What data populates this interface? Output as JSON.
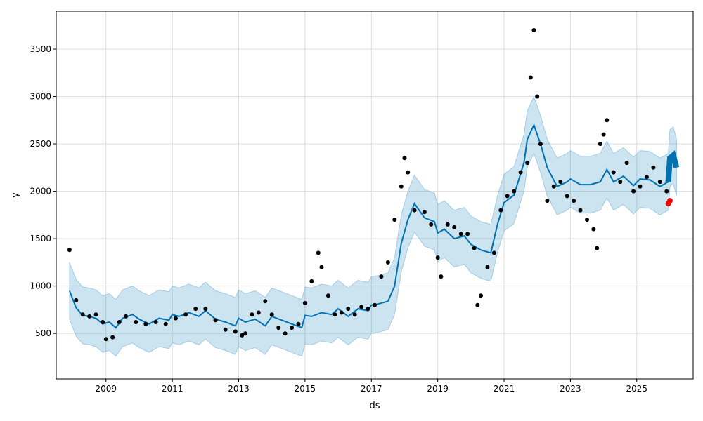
{
  "chart_data": {
    "type": "line",
    "title": "",
    "xlabel": "ds",
    "ylabel": "y",
    "grid": true,
    "xlim": [
      2007.5,
      2026.7
    ],
    "ylim": [
      20,
      3900
    ],
    "xticks": [
      2009,
      2011,
      2013,
      2015,
      2017,
      2019,
      2021,
      2023,
      2025
    ],
    "yticks": [
      500,
      1000,
      1500,
      2000,
      2500,
      3000,
      3500
    ],
    "colors": {
      "forecast": "#0072B2",
      "band": "#0072B2",
      "actual": "#000000",
      "highlight": "#ff0000"
    },
    "series": [
      {
        "role": "forecast_yhat",
        "x": [
          2007.9,
          2008.1,
          2008.3,
          2008.5,
          2008.7,
          2008.9,
          2009.1,
          2009.3,
          2009.5,
          2009.8,
          2010.0,
          2010.3,
          2010.6,
          2010.9,
          2011.0,
          2011.2,
          2011.5,
          2011.8,
          2012.0,
          2012.3,
          2012.6,
          2012.9,
          2013.0,
          2013.2,
          2013.5,
          2013.8,
          2014.0,
          2014.3,
          2014.6,
          2014.9,
          2015.0,
          2015.2,
          2015.5,
          2015.8,
          2016.0,
          2016.3,
          2016.6,
          2016.9,
          2017.0,
          2017.2,
          2017.5,
          2017.7,
          2017.9,
          2018.1,
          2018.3,
          2018.6,
          2018.9,
          2019.0,
          2019.2,
          2019.5,
          2019.8,
          2020.0,
          2020.3,
          2020.6,
          2020.8,
          2021.0,
          2021.3,
          2021.6,
          2021.7,
          2021.9,
          2022.1,
          2022.3,
          2022.6,
          2022.9,
          2023.0,
          2023.3,
          2023.6,
          2023.9,
          2024.1,
          2024.3,
          2024.6,
          2024.9,
          2025.1,
          2025.4,
          2025.7,
          2025.95
        ],
        "y": [
          950,
          770,
          690,
          680,
          660,
          600,
          620,
          560,
          660,
          700,
          650,
          600,
          660,
          640,
          700,
          680,
          720,
          680,
          740,
          650,
          620,
          580,
          660,
          620,
          650,
          580,
          680,
          640,
          600,
          560,
          690,
          680,
          720,
          700,
          760,
          680,
          760,
          740,
          800,
          810,
          840,
          1000,
          1450,
          1700,
          1870,
          1720,
          1680,
          1560,
          1600,
          1500,
          1530,
          1440,
          1380,
          1350,
          1650,
          1880,
          1960,
          2300,
          2550,
          2700,
          2500,
          2250,
          2050,
          2100,
          2130,
          2070,
          2070,
          2100,
          2230,
          2100,
          2160,
          2060,
          2130,
          2120,
          2050,
          2100
        ]
      },
      {
        "role": "forecast_future",
        "x": [
          2025.95,
          2026.0,
          2026.1,
          2026.2
        ],
        "y": [
          2100,
          2350,
          2380,
          2250
        ]
      },
      {
        "role": "actual",
        "x": [
          2007.9,
          2008.1,
          2008.3,
          2008.5,
          2008.7,
          2008.9,
          2009.0,
          2009.2,
          2009.4,
          2009.6,
          2009.9,
          2010.2,
          2010.5,
          2010.8,
          2011.1,
          2011.4,
          2011.7,
          2012.0,
          2012.3,
          2012.6,
          2012.9,
          2013.1,
          2013.2,
          2013.4,
          2013.6,
          2013.8,
          2014.0,
          2014.2,
          2014.4,
          2014.6,
          2014.8,
          2015.0,
          2015.2,
          2015.4,
          2015.5,
          2015.7,
          2015.9,
          2016.1,
          2016.3,
          2016.5,
          2016.7,
          2016.9,
          2017.1,
          2017.3,
          2017.5,
          2017.7,
          2017.9,
          2018.0,
          2018.1,
          2018.3,
          2018.6,
          2018.8,
          2019.0,
          2019.1,
          2019.3,
          2019.5,
          2019.7,
          2019.9,
          2020.1,
          2020.2,
          2020.3,
          2020.5,
          2020.7,
          2020.9,
          2021.1,
          2021.3,
          2021.5,
          2021.7,
          2021.8,
          2021.9,
          2022.0,
          2022.1,
          2022.3,
          2022.5,
          2022.7,
          2022.9,
          2023.1,
          2023.3,
          2023.5,
          2023.7,
          2023.8,
          2023.9,
          2024.0,
          2024.1,
          2024.3,
          2024.5,
          2024.7,
          2024.9,
          2025.1,
          2025.3,
          2025.5,
          2025.7,
          2025.9
        ],
        "y": [
          1380,
          850,
          700,
          680,
          700,
          620,
          440,
          460,
          620,
          680,
          620,
          600,
          620,
          600,
          660,
          700,
          760,
          760,
          640,
          540,
          520,
          480,
          500,
          700,
          720,
          840,
          700,
          560,
          500,
          560,
          600,
          820,
          1050,
          1350,
          1200,
          900,
          700,
          720,
          760,
          700,
          780,
          760,
          800,
          1100,
          1250,
          1700,
          2050,
          2350,
          2200,
          1800,
          1780,
          1650,
          1300,
          1100,
          1650,
          1620,
          1550,
          1550,
          1400,
          800,
          900,
          1200,
          1350,
          1800,
          1950,
          2000,
          2200,
          2300,
          3200,
          3700,
          3000,
          2500,
          1900,
          2050,
          2100,
          1950,
          1900,
          1800,
          1700,
          1600,
          1400,
          2500,
          2600,
          2750,
          2200,
          2100,
          2300,
          2000,
          2050,
          2150,
          2250,
          2100,
          2000
        ]
      },
      {
        "role": "highlight",
        "x": [
          2025.95,
          2026.0
        ],
        "y": [
          1870,
          1900
        ]
      }
    ]
  }
}
